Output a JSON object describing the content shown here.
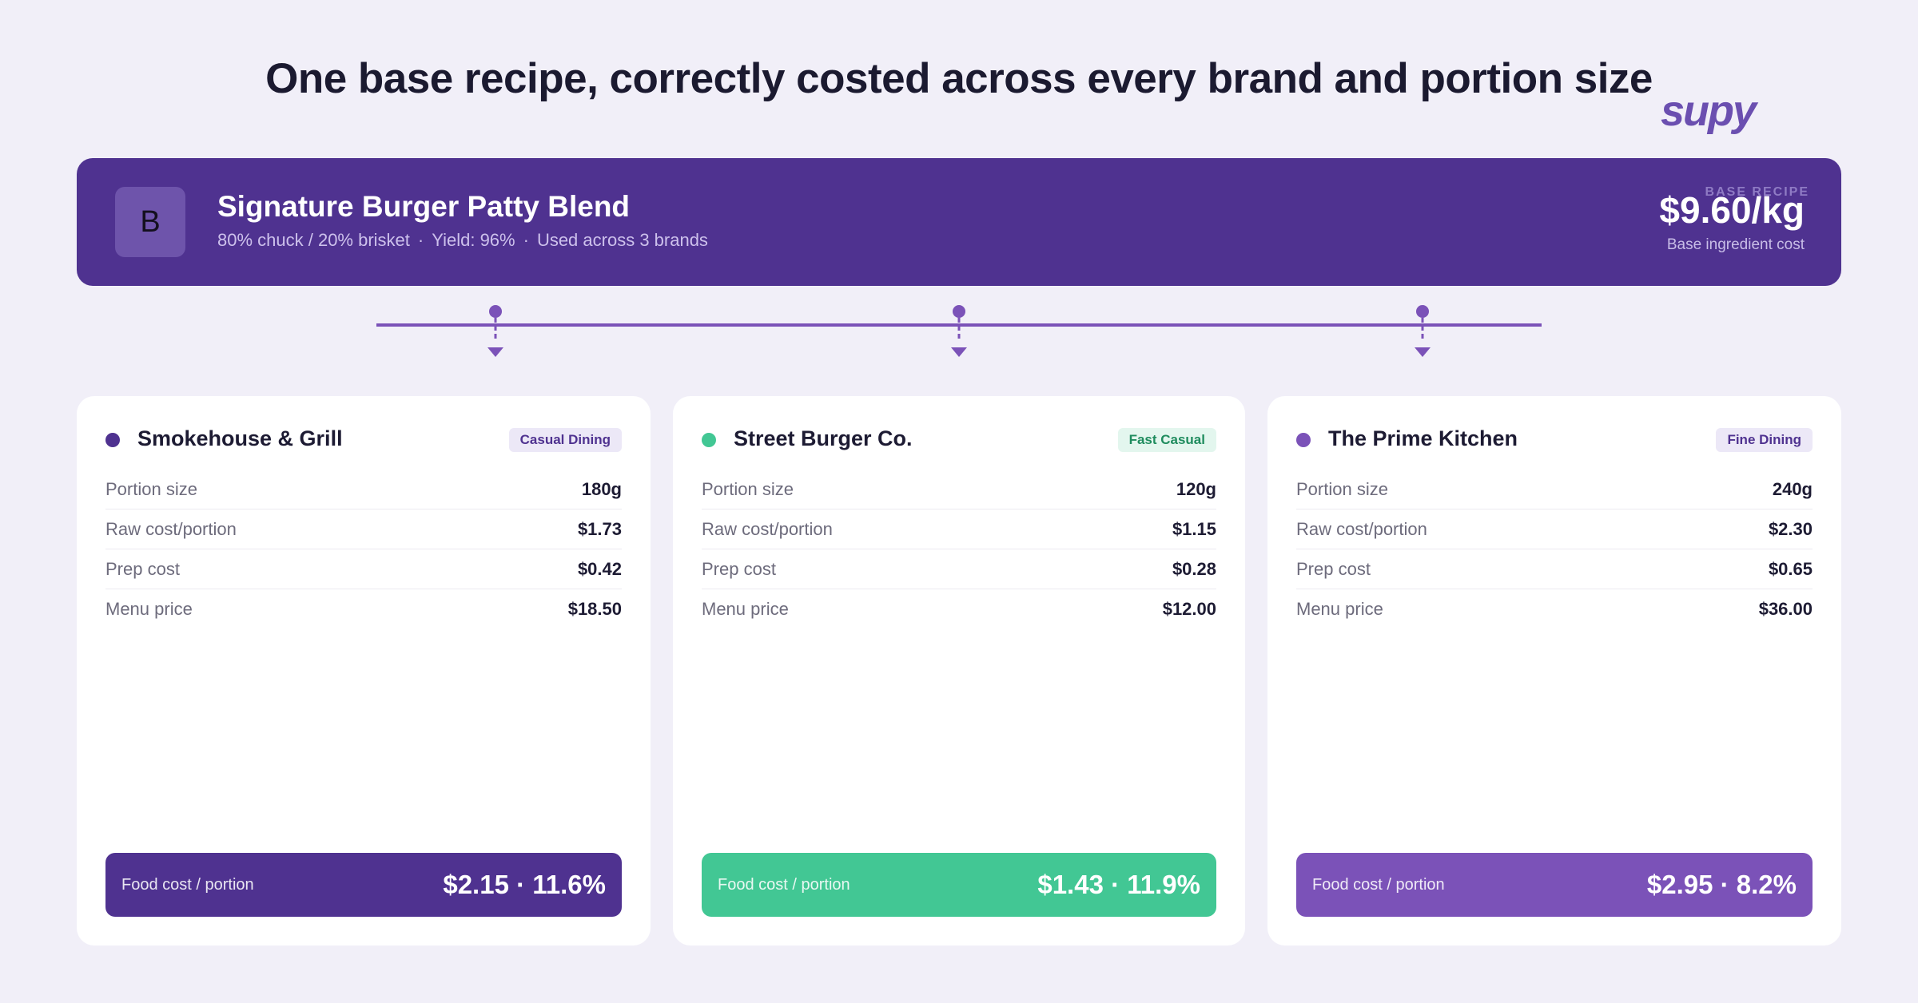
{
  "title": "One base recipe, correctly costed across every brand and portion size",
  "logo": "supy",
  "recipe": {
    "initial": "B",
    "name": "Signature Burger Patty Blend",
    "composition": "80% chuck / 20% brisket",
    "yield": "Yield: 96%",
    "usage": "Used across 3 brands",
    "tag": "BASE RECIPE",
    "price": "$9.60/kg",
    "price_label": "Base ingredient cost"
  },
  "colors": {
    "background": "#f1eff8",
    "banner": "#4f3290",
    "connector": "#7b52b8"
  },
  "brands": [
    {
      "name": "Smokehouse & Grill",
      "badge": "Casual Dining",
      "color": "#4f3290",
      "badge_bg": "#ece8f7",
      "badge_fg": "#4f3290",
      "rows": [
        {
          "label": "Portion size",
          "value": "180g"
        },
        {
          "label": "Raw cost/portion",
          "value": "$1.73"
        },
        {
          "label": "Prep cost",
          "value": "$0.42"
        },
        {
          "label": "Menu price",
          "value": "$18.50"
        }
      ],
      "cost_label": "Food cost / portion",
      "cost_value": "$2.15 · 11.6%"
    },
    {
      "name": "Street Burger Co.",
      "badge": "Fast Casual",
      "color": "#42c794",
      "badge_bg": "#e3f6ee",
      "badge_fg": "#1f8c5e",
      "rows": [
        {
          "label": "Portion size",
          "value": "120g"
        },
        {
          "label": "Raw cost/portion",
          "value": "$1.15"
        },
        {
          "label": "Prep cost",
          "value": "$0.28"
        },
        {
          "label": "Menu price",
          "value": "$12.00"
        }
      ],
      "cost_label": "Food cost / portion",
      "cost_value": "$1.43 · 11.9%"
    },
    {
      "name": "The Prime Kitchen",
      "badge": "Fine Dining",
      "color": "#7b52b8",
      "badge_bg": "#ece8f7",
      "badge_fg": "#4f3290",
      "rows": [
        {
          "label": "Portion size",
          "value": "240g"
        },
        {
          "label": "Raw cost/portion",
          "value": "$2.30"
        },
        {
          "label": "Prep cost",
          "value": "$0.65"
        },
        {
          "label": "Menu price",
          "value": "$36.00"
        }
      ],
      "cost_label": "Food cost / portion",
      "cost_value": "$2.95 · 8.2%"
    }
  ]
}
